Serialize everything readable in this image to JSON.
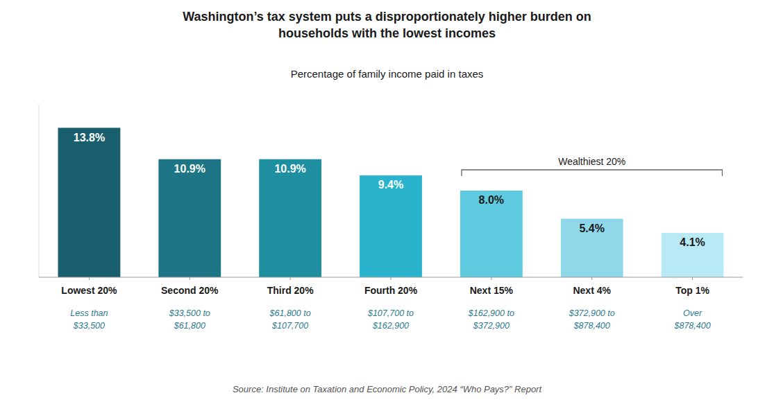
{
  "chart_data": {
    "type": "bar",
    "title": "Washington’s tax system puts a disproportionately higher burden on\nhouseholds with the lowest incomes",
    "subtitle": "Percentage of family income paid in taxes",
    "source": "Source: Institute on Taxation and Economic Policy, 2024 “Who Pays?” Report",
    "categories": [
      "Lowest 20%",
      "Second 20%",
      "Third 20%",
      "Fourth 20%",
      "Next 15%",
      "Next 4%",
      "Top 1%"
    ],
    "subcategories": [
      "Less than\n$33,500",
      "$33,500 to\n$61,800",
      "$61,800 to\n$107,700",
      "$107,700 to\n$162,900",
      "$162,900 to\n$372,900",
      "$372,900 to\n$878,400",
      "Over\n$878,400"
    ],
    "values": [
      13.8,
      10.9,
      10.9,
      9.4,
      8.0,
      5.4,
      4.1
    ],
    "value_labels": [
      "13.8%",
      "10.9%",
      "10.9%",
      "9.4%",
      "8.0%",
      "5.4%",
      "4.1%"
    ],
    "colors": [
      "#1a5f6e",
      "#1d7585",
      "#1e8fa0",
      "#2ab3cc",
      "#5ecbe0",
      "#8ed8ea",
      "#b8eaf5"
    ],
    "ylim": [
      0,
      16
    ],
    "data_labels": true,
    "tick_labels": "x",
    "grid": false,
    "annotations": [
      {
        "text": "Wealthiest 20%",
        "from": "Next 15%",
        "to": "Top 1%"
      }
    ]
  }
}
